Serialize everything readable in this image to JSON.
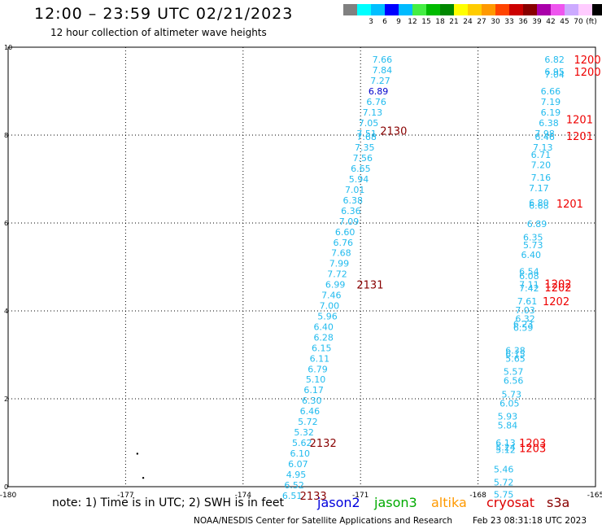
{
  "header": {
    "title": "12:00 – 23:59 UTC 02/21/2023",
    "subtitle": "12 hour collection of altimeter wave heights"
  },
  "legend": {
    "unit": "(ft)",
    "colors": [
      "#808080",
      "#00ffff",
      "#00bfff",
      "#0000ff",
      "#00bbff",
      "#44ee44",
      "#00bb00",
      "#008800",
      "#ffff00",
      "#ffcc00",
      "#ff9900",
      "#ff4400",
      "#cc0000",
      "#880000",
      "#aa00aa",
      "#ee55ee",
      "#ccaaff",
      "#ffccff",
      "#000000"
    ],
    "labels": [
      "",
      "3",
      "6",
      "9",
      "12",
      "15",
      "18",
      "21",
      "24",
      "27",
      "30",
      "33",
      "36",
      "39",
      "42",
      "45",
      "70"
    ]
  },
  "footer": {
    "note": "note: 1) Time is in UTC; 2) SWH is in feet",
    "credit": "NOAA/NESDIS Center for Satellite Applications and Research",
    "timestamp": "Feb 23 08:31:18 UTC 2023",
    "satellites": [
      {
        "name": "jason2",
        "color": "#0000dd"
      },
      {
        "name": "jason3",
        "color": "#00aa00"
      },
      {
        "name": "altika",
        "color": "#ff9900"
      },
      {
        "name": "cryosat",
        "color": "#dd0000"
      },
      {
        "name": "s3a",
        "color": "#880000"
      }
    ]
  },
  "chart_data": {
    "type": "scatter",
    "xlim": [
      -180,
      -165
    ],
    "ylim": [
      0,
      10
    ],
    "x_ticks": [
      "-180",
      "-177",
      "-174",
      "-171",
      "-168",
      "-165"
    ],
    "y_ticks": [
      "0",
      "2",
      "4",
      "6",
      "8",
      "10"
    ],
    "grid": true,
    "tracks": [
      {
        "color": "#22bbee",
        "points": [
          {
            "x": -170.7,
            "y": 9.72,
            "label": "7.66"
          },
          {
            "x": -170.7,
            "y": 9.48,
            "label": "7.84"
          },
          {
            "x": -170.75,
            "y": 9.24,
            "label": "7.27"
          },
          {
            "x": -170.8,
            "y": 9.0,
            "label": "6.89",
            "color": "#0000cc"
          },
          {
            "x": -170.85,
            "y": 8.76,
            "label": "6.76"
          },
          {
            "x": -170.95,
            "y": 8.52,
            "label": "7.13"
          },
          {
            "x": -171.05,
            "y": 8.28,
            "label": "7.05"
          },
          {
            "x": -171.1,
            "y": 8.04,
            "label": "7.51"
          },
          {
            "x": -171.1,
            "y": 7.96,
            "label": "7.68"
          },
          {
            "x": -171.15,
            "y": 7.72,
            "label": "7.35"
          },
          {
            "x": -171.2,
            "y": 7.48,
            "label": "7.56"
          },
          {
            "x": -171.25,
            "y": 7.24,
            "label": "6.65"
          },
          {
            "x": -171.3,
            "y": 7.0,
            "label": "5.94"
          },
          {
            "x": -171.4,
            "y": 6.76,
            "label": "7.01"
          },
          {
            "x": -171.45,
            "y": 6.52,
            "label": "6.38"
          },
          {
            "x": -171.5,
            "y": 6.28,
            "label": "6.36"
          },
          {
            "x": -171.55,
            "y": 6.04,
            "label": "7.09"
          },
          {
            "x": -171.65,
            "y": 5.8,
            "label": "6.60"
          },
          {
            "x": -171.7,
            "y": 5.56,
            "label": "6.76"
          },
          {
            "x": -171.75,
            "y": 5.32,
            "label": "7.68"
          },
          {
            "x": -171.8,
            "y": 5.08,
            "label": "7.99"
          },
          {
            "x": -171.85,
            "y": 4.84,
            "label": "7.72"
          },
          {
            "x": -171.9,
            "y": 4.6,
            "label": "6.99"
          },
          {
            "x": -172.0,
            "y": 4.36,
            "label": "7.46"
          },
          {
            "x": -172.05,
            "y": 4.12,
            "label": "7.00"
          },
          {
            "x": -172.1,
            "y": 3.88,
            "label": "5.96"
          },
          {
            "x": -172.2,
            "y": 3.64,
            "label": "6.40"
          },
          {
            "x": -172.2,
            "y": 3.4,
            "label": "6.28"
          },
          {
            "x": -172.25,
            "y": 3.16,
            "label": "6.15"
          },
          {
            "x": -172.3,
            "y": 2.92,
            "label": "6.11"
          },
          {
            "x": -172.35,
            "y": 2.68,
            "label": "6.79"
          },
          {
            "x": -172.4,
            "y": 2.44,
            "label": "5.10"
          },
          {
            "x": -172.45,
            "y": 2.2,
            "label": "6.17"
          },
          {
            "x": -172.5,
            "y": 1.96,
            "label": "6.30"
          },
          {
            "x": -172.55,
            "y": 1.72,
            "label": "6.46"
          },
          {
            "x": -172.6,
            "y": 1.48,
            "label": "5.72"
          },
          {
            "x": -172.7,
            "y": 1.24,
            "label": "5.32"
          },
          {
            "x": -172.75,
            "y": 1.0,
            "label": "5.62"
          },
          {
            "x": -172.8,
            "y": 0.76,
            "label": "6.10"
          },
          {
            "x": -172.85,
            "y": 0.52,
            "label": "6.07"
          },
          {
            "x": -172.9,
            "y": 0.28,
            "label": "4.95"
          },
          {
            "x": -172.95,
            "y": 0.04,
            "label": "6.52"
          },
          {
            "x": -173.0,
            "y": -0.2,
            "label": "6.51"
          }
        ]
      },
      {
        "color": "#22bbee",
        "points": [
          {
            "x": -166.3,
            "y": 9.72,
            "label": "6.82"
          },
          {
            "x": -166.3,
            "y": 9.44,
            "label": "6.95"
          },
          {
            "x": -166.3,
            "y": 9.38,
            "label": "7.04"
          },
          {
            "x": -166.4,
            "y": 9.0,
            "label": "6.66"
          },
          {
            "x": -166.4,
            "y": 8.76,
            "label": "7.19"
          },
          {
            "x": -166.4,
            "y": 8.52,
            "label": "6.19"
          },
          {
            "x": -166.45,
            "y": 8.28,
            "label": "6.38"
          },
          {
            "x": -166.55,
            "y": 8.04,
            "label": "7.98"
          },
          {
            "x": -166.55,
            "y": 7.96,
            "label": "6.46"
          },
          {
            "x": -166.6,
            "y": 7.72,
            "label": "7.13"
          },
          {
            "x": -166.65,
            "y": 7.56,
            "label": "6.71"
          },
          {
            "x": -166.65,
            "y": 7.32,
            "label": "7.20"
          },
          {
            "x": -166.65,
            "y": 7.04,
            "label": "7.16"
          },
          {
            "x": -166.7,
            "y": 6.8,
            "label": "7.17"
          },
          {
            "x": -166.7,
            "y": 6.46,
            "label": "6.80"
          },
          {
            "x": -166.7,
            "y": 6.4,
            "label": "6.68"
          },
          {
            "x": -166.75,
            "y": 5.98,
            "label": "6.89"
          },
          {
            "x": -166.85,
            "y": 5.68,
            "label": "6.35"
          },
          {
            "x": -166.85,
            "y": 5.5,
            "label": "5.73"
          },
          {
            "x": -166.9,
            "y": 5.28,
            "label": "6.40"
          },
          {
            "x": -166.95,
            "y": 4.9,
            "label": "6.54"
          },
          {
            "x": -166.95,
            "y": 4.8,
            "label": "6.08"
          },
          {
            "x": -166.95,
            "y": 4.6,
            "label": "7.11"
          },
          {
            "x": -166.95,
            "y": 4.52,
            "label": "7.42"
          },
          {
            "x": -167.0,
            "y": 4.22,
            "label": "7.61"
          },
          {
            "x": -167.05,
            "y": 4.02,
            "label": "7.03"
          },
          {
            "x": -167.05,
            "y": 3.82,
            "label": "6.32"
          },
          {
            "x": -167.1,
            "y": 3.7,
            "label": "6.23"
          },
          {
            "x": -167.1,
            "y": 3.62,
            "label": "6.59"
          },
          {
            "x": -167.3,
            "y": 3.1,
            "label": "6.38"
          },
          {
            "x": -167.3,
            "y": 3.02,
            "label": "6.15"
          },
          {
            "x": -167.3,
            "y": 2.92,
            "label": "5.65"
          },
          {
            "x": -167.35,
            "y": 2.62,
            "label": "5.57"
          },
          {
            "x": -167.35,
            "y": 2.42,
            "label": "6.56"
          },
          {
            "x": -167.4,
            "y": 2.1,
            "label": "5.73"
          },
          {
            "x": -167.45,
            "y": 1.9,
            "label": "6.05"
          },
          {
            "x": -167.5,
            "y": 1.6,
            "label": "5.93"
          },
          {
            "x": -167.5,
            "y": 1.4,
            "label": "5.84"
          },
          {
            "x": -167.55,
            "y": 1.0,
            "label": "6.13"
          },
          {
            "x": -167.55,
            "y": 0.9,
            "label": "5.24"
          },
          {
            "x": -167.55,
            "y": 0.84,
            "label": "5.12"
          },
          {
            "x": -167.6,
            "y": 0.4,
            "label": "5.46"
          },
          {
            "x": -167.6,
            "y": 0.1,
            "label": "5.72"
          },
          {
            "x": -167.6,
            "y": -0.18,
            "label": "5.75"
          }
        ]
      }
    ],
    "time_labels": [
      {
        "x": -170.5,
        "y": 8.1,
        "text": "2130",
        "color": "#880000"
      },
      {
        "x": -171.1,
        "y": 4.6,
        "text": "2131",
        "color": "#880000"
      },
      {
        "x": -172.3,
        "y": 1.0,
        "text": "2132",
        "color": "#880000"
      },
      {
        "x": -172.55,
        "y": -0.2,
        "text": "2133",
        "color": "#880000"
      },
      {
        "x": -165.55,
        "y": 9.72,
        "text": "1200",
        "color": "#ee0000"
      },
      {
        "x": -165.55,
        "y": 9.44,
        "text": "1200",
        "color": "#ee0000"
      },
      {
        "x": -165.75,
        "y": 8.36,
        "text": "1201",
        "color": "#ee0000"
      },
      {
        "x": -165.75,
        "y": 7.98,
        "text": "1201",
        "color": "#ee0000"
      },
      {
        "x": -166.0,
        "y": 6.44,
        "text": "1201",
        "color": "#ee0000"
      },
      {
        "x": -166.3,
        "y": 4.62,
        "text": "1202",
        "color": "#ee0000"
      },
      {
        "x": -166.3,
        "y": 4.54,
        "text": "1202",
        "color": "#ee0000"
      },
      {
        "x": -166.35,
        "y": 4.22,
        "text": "1202",
        "color": "#ee0000"
      },
      {
        "x": -166.95,
        "y": 1.0,
        "text": "1203",
        "color": "#ee0000"
      },
      {
        "x": -166.95,
        "y": 0.88,
        "text": "1203",
        "color": "#ee0000"
      }
    ],
    "dots": [
      {
        "x": -176.7,
        "y": 0.75
      },
      {
        "x": -176.55,
        "y": 0.2
      }
    ]
  }
}
